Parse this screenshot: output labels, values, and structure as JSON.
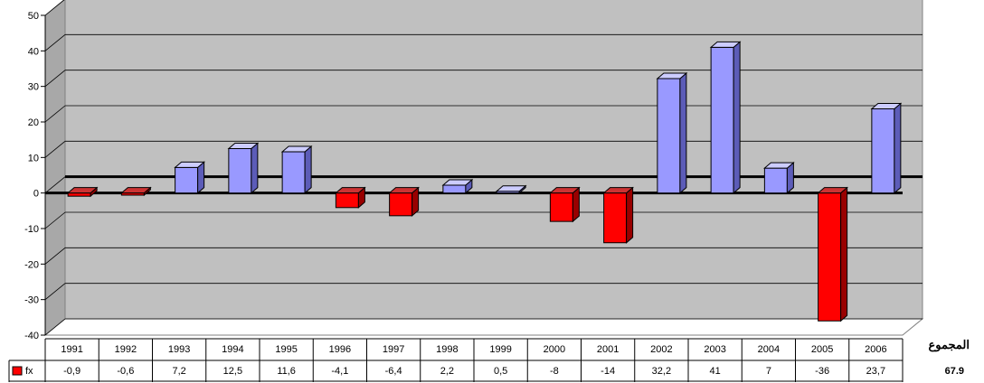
{
  "chart_data": {
    "type": "bar",
    "categories": [
      "1991",
      "1992",
      "1993",
      "1994",
      "1995",
      "1996",
      "1997",
      "1998",
      "1999",
      "2000",
      "2001",
      "2002",
      "2003",
      "2004",
      "2005",
      "2006"
    ],
    "series": [
      {
        "name": "fx",
        "values": [
          -0.9,
          -0.6,
          7.2,
          12.5,
          11.6,
          -4.1,
          -6.4,
          2.2,
          0.5,
          -8,
          -14,
          32.2,
          41,
          7,
          -36,
          23.7
        ],
        "labels": [
          "-0,9",
          "-0,6",
          "7,2",
          "12,5",
          "11,6",
          "-4,1",
          "-6,4",
          "2,2",
          "0,5",
          "-8",
          "-14",
          "32,2",
          "41",
          "7",
          "-36",
          "23,7"
        ]
      }
    ],
    "ylim": [
      -40,
      50
    ],
    "yticks": [
      -40,
      -30,
      -20,
      -10,
      0,
      10,
      20,
      30,
      40,
      50
    ],
    "grid": true,
    "legend": "data-table",
    "colors": {
      "positive_front": "#9999ff",
      "positive_side": "#5c5cb8",
      "positive_top": "#ccccff",
      "negative_front": "#ff0000",
      "negative_side": "#990000",
      "negative_top": "#cc3333",
      "wall": "#c0c0c0",
      "floor": "#ffffff"
    }
  },
  "side": {
    "label": "المجموع",
    "total": "67.9"
  }
}
